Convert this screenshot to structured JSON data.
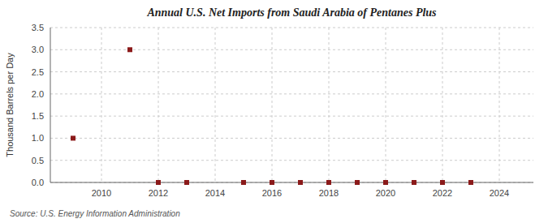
{
  "chart_data": {
    "type": "scatter",
    "title": "Annual U.S. Net Imports from Saudi Arabia of Pentanes Plus",
    "ylabel": "Thousand Barrels per Day",
    "annotations": [
      "Source: U.S. Energy Information Administration"
    ],
    "x": [
      2009,
      2011,
      2012,
      2013,
      2015,
      2016,
      2017,
      2018,
      2019,
      2020,
      2021,
      2022,
      2023
    ],
    "values": [
      1.0,
      3.0,
      0.0,
      0.0,
      0.0,
      0.0,
      0.0,
      0.0,
      0.0,
      0.0,
      0.0,
      0.0,
      0.0
    ],
    "color": "#8b1a1a",
    "marker": "square",
    "xlim": [
      2008.2,
      2025.2
    ],
    "ylim": [
      0.0,
      3.5
    ],
    "xticks": [
      2010,
      2012,
      2014,
      2016,
      2018,
      2020,
      2022,
      2024
    ],
    "yticks": [
      {
        "value": 0.0,
        "label": "0.0"
      },
      0.5,
      {
        "value": 1.0,
        "label": "1.0"
      },
      1.5,
      {
        "value": 2.0,
        "label": "2.0"
      },
      2.5,
      {
        "value": 3.0,
        "label": "3.0"
      },
      3.5
    ],
    "grid": true
  }
}
